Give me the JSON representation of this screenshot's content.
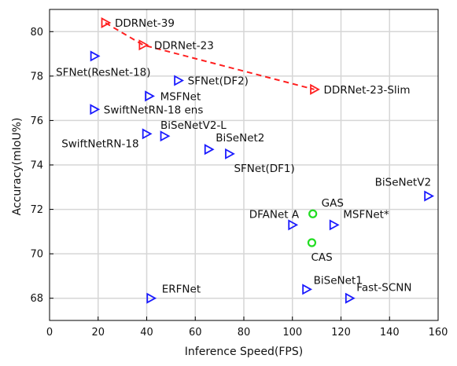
{
  "chart_data": {
    "type": "scatter",
    "xlabel": "Inference Speed(FPS)",
    "ylabel": "Accuracy(mIoU%)",
    "xlim": [
      0,
      160
    ],
    "ylim": [
      67,
      81
    ],
    "xticks": [
      0,
      20,
      40,
      60,
      80,
      100,
      120,
      140,
      160
    ],
    "yticks": [
      68,
      70,
      72,
      74,
      76,
      78,
      80
    ],
    "grid": true,
    "colors": {
      "blue": "#1a1aff",
      "red": "#ff2020",
      "green": "#22dd22",
      "grid": "#d6d6d6"
    },
    "series": [
      {
        "marker": "triangle-right",
        "color": "#1a1aff",
        "points": [
          {
            "label": "SFNet(ResNet-18)",
            "x": 18.5,
            "y": 78.9
          },
          {
            "label": "SFNet(DF2)",
            "x": 53,
            "y": 77.8
          },
          {
            "label": "MSFNet",
            "x": 41,
            "y": 77.1
          },
          {
            "label": "SwiftNetRN-18 ens",
            "x": 18.4,
            "y": 76.5
          },
          {
            "label": "SwiftNetRN-18",
            "x": 39.9,
            "y": 75.4
          },
          {
            "label": "BiSeNetV2-L",
            "x": 47.3,
            "y": 75.3
          },
          {
            "label": "BiSeNet2",
            "x": 65.5,
            "y": 74.7
          },
          {
            "label": "SFNet(DF1)",
            "x": 74,
            "y": 74.5
          },
          {
            "label": "BiSeNetV2",
            "x": 156,
            "y": 72.6
          },
          {
            "label": "DFANet A",
            "x": 100,
            "y": 71.3
          },
          {
            "label": "MSFNet*",
            "x": 117,
            "y": 71.3
          },
          {
            "label": "ERFNet",
            "x": 41.7,
            "y": 68
          },
          {
            "label": "BiSeNet1",
            "x": 105.8,
            "y": 68.4
          },
          {
            "label": "Fast-SCNN",
            "x": 123.5,
            "y": 68
          }
        ]
      },
      {
        "marker": "triangle-right",
        "color": "#ff2020",
        "line": "dashed",
        "points": [
          {
            "label": "DDRNet-39",
            "x": 23,
            "y": 80.4
          },
          {
            "label": "DDRNet-23",
            "x": 38.5,
            "y": 79.4
          },
          {
            "label": "DDRNet-23-Slim",
            "x": 109,
            "y": 77.4
          }
        ]
      },
      {
        "marker": "circle",
        "color": "#22dd22",
        "points": [
          {
            "label": "GAS",
            "x": 108.4,
            "y": 71.8
          },
          {
            "label": "CAS",
            "x": 108,
            "y": 70.5
          }
        ]
      }
    ]
  }
}
